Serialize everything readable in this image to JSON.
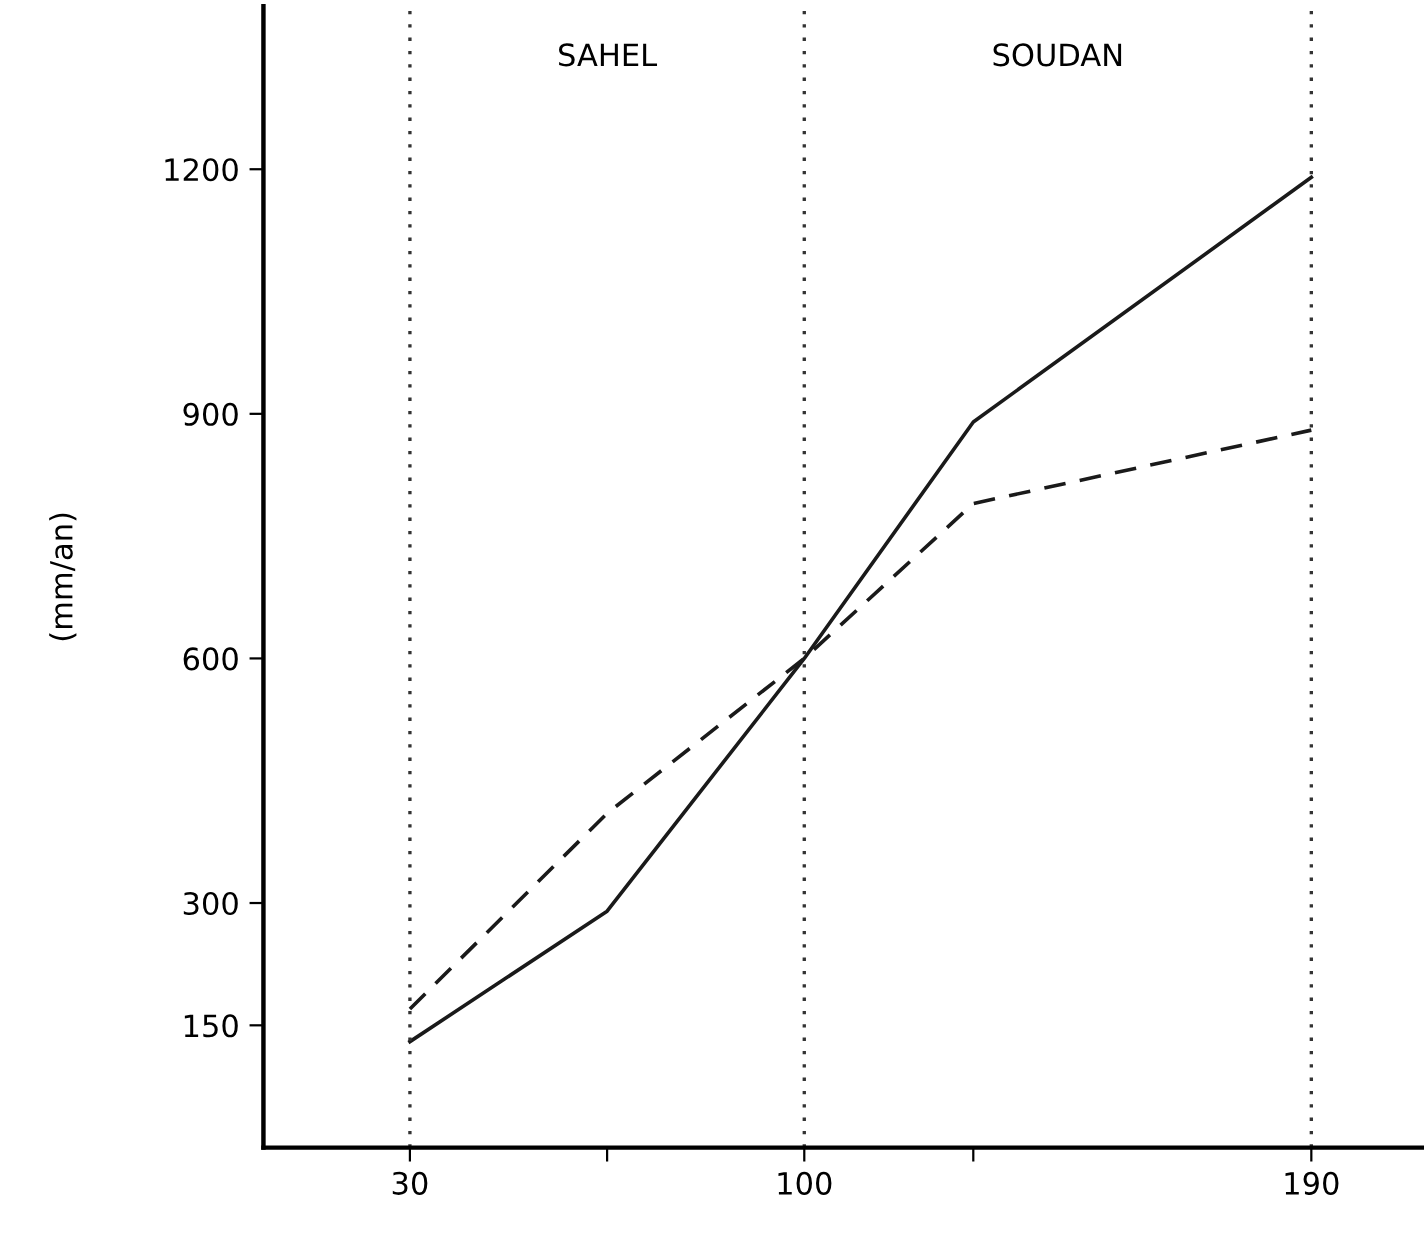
{
  "chart_data": {
    "type": "line",
    "ylabel": "(mm/an)",
    "xlim": [
      4,
      210
    ],
    "xticks": [
      30,
      {
        "value": 65,
        "label": null
      },
      100,
      {
        "value": 130,
        "label": null
      },
      190
    ],
    "ylim": [
      0,
      1400
    ],
    "yticks": [
      150,
      300,
      600,
      900,
      1200
    ],
    "grid": false,
    "legend": false,
    "marker": "none",
    "series": [
      {
        "color": "#1a1a1a",
        "line_style": "solid",
        "x": [
          30,
          65,
          100,
          130,
          190
        ],
        "values": [
          130,
          290,
          600,
          890,
          1190
        ]
      },
      {
        "color": "#1a1a1a",
        "line_style": "dashed",
        "x": [
          30,
          65,
          100,
          130,
          190
        ],
        "values": [
          170,
          410,
          600,
          790,
          880
        ]
      }
    ],
    "ref_lines": [
      {
        "axis": "x",
        "value": 30,
        "color": "#333333",
        "line_style": "dotted"
      },
      {
        "axis": "x",
        "value": 100,
        "color": "#333333",
        "line_style": "dotted"
      },
      {
        "axis": "x",
        "value": 190,
        "color": "#333333",
        "line_style": "dotted"
      }
    ],
    "annotations": [
      "SAHEL",
      "SOUDAN"
    ]
  }
}
